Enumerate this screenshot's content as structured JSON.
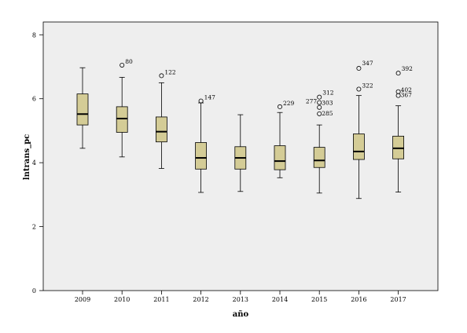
{
  "chart_data": {
    "type": "boxplot",
    "xlabel": "año",
    "ylabel": "lntrans_pc",
    "ylim": [
      0,
      8.4
    ],
    "yticks": [
      0,
      2,
      4,
      6,
      8
    ],
    "grid": false,
    "colors": {
      "box_fill": "#d4cc96",
      "plot_bg": "#eeeeee",
      "stroke": "#000000"
    },
    "categories": [
      "2009",
      "2010",
      "2011",
      "2012",
      "2013",
      "2014",
      "2015",
      "2016",
      "2017"
    ],
    "boxes": [
      {
        "category": "2009",
        "whisker_low": 4.45,
        "q1": 5.18,
        "median": 5.52,
        "q3": 6.15,
        "whisker_high": 6.97,
        "outliers": []
      },
      {
        "category": "2010",
        "whisker_low": 4.18,
        "q1": 4.95,
        "median": 5.38,
        "q3": 5.75,
        "whisker_high": 6.67,
        "outliers": [
          {
            "value": 7.05,
            "label": "80"
          }
        ]
      },
      {
        "category": "2011",
        "whisker_low": 3.82,
        "q1": 4.65,
        "median": 4.97,
        "q3": 5.43,
        "whisker_high": 6.5,
        "outliers": [
          {
            "value": 6.72,
            "label": "122"
          }
        ]
      },
      {
        "category": "2012",
        "whisker_low": 3.07,
        "q1": 3.8,
        "median": 4.15,
        "q3": 4.63,
        "whisker_high": 5.87,
        "outliers": [
          {
            "value": 5.93,
            "label": "147"
          }
        ]
      },
      {
        "category": "2013",
        "whisker_low": 3.1,
        "q1": 3.8,
        "median": 4.15,
        "q3": 4.5,
        "whisker_high": 5.5,
        "outliers": []
      },
      {
        "category": "2014",
        "whisker_low": 3.53,
        "q1": 3.78,
        "median": 4.05,
        "q3": 4.53,
        "whisker_high": 5.57,
        "outliers": [
          {
            "value": 5.75,
            "label": "229"
          }
        ]
      },
      {
        "category": "2015",
        "whisker_low": 3.05,
        "q1": 3.85,
        "median": 4.07,
        "q3": 4.48,
        "whisker_high": 5.18,
        "outliers": [
          {
            "value": 6.05,
            "label": "312"
          },
          {
            "value": 5.88,
            "label": "277"
          },
          {
            "value": 5.73,
            "label": "303"
          },
          {
            "value": 5.53,
            "label": "285"
          }
        ]
      },
      {
        "category": "2016",
        "whisker_low": 2.88,
        "q1": 4.1,
        "median": 4.35,
        "q3": 4.9,
        "whisker_high": 6.1,
        "outliers": [
          {
            "value": 6.95,
            "label": "347"
          },
          {
            "value": 6.3,
            "label": "322"
          }
        ]
      },
      {
        "category": "2017",
        "whisker_low": 3.08,
        "q1": 4.12,
        "median": 4.45,
        "q3": 4.83,
        "whisker_high": 5.78,
        "outliers": [
          {
            "value": 6.8,
            "label": "392"
          },
          {
            "value": 6.22,
            "label": "402"
          },
          {
            "value": 6.1,
            "label": "367"
          }
        ]
      }
    ]
  }
}
